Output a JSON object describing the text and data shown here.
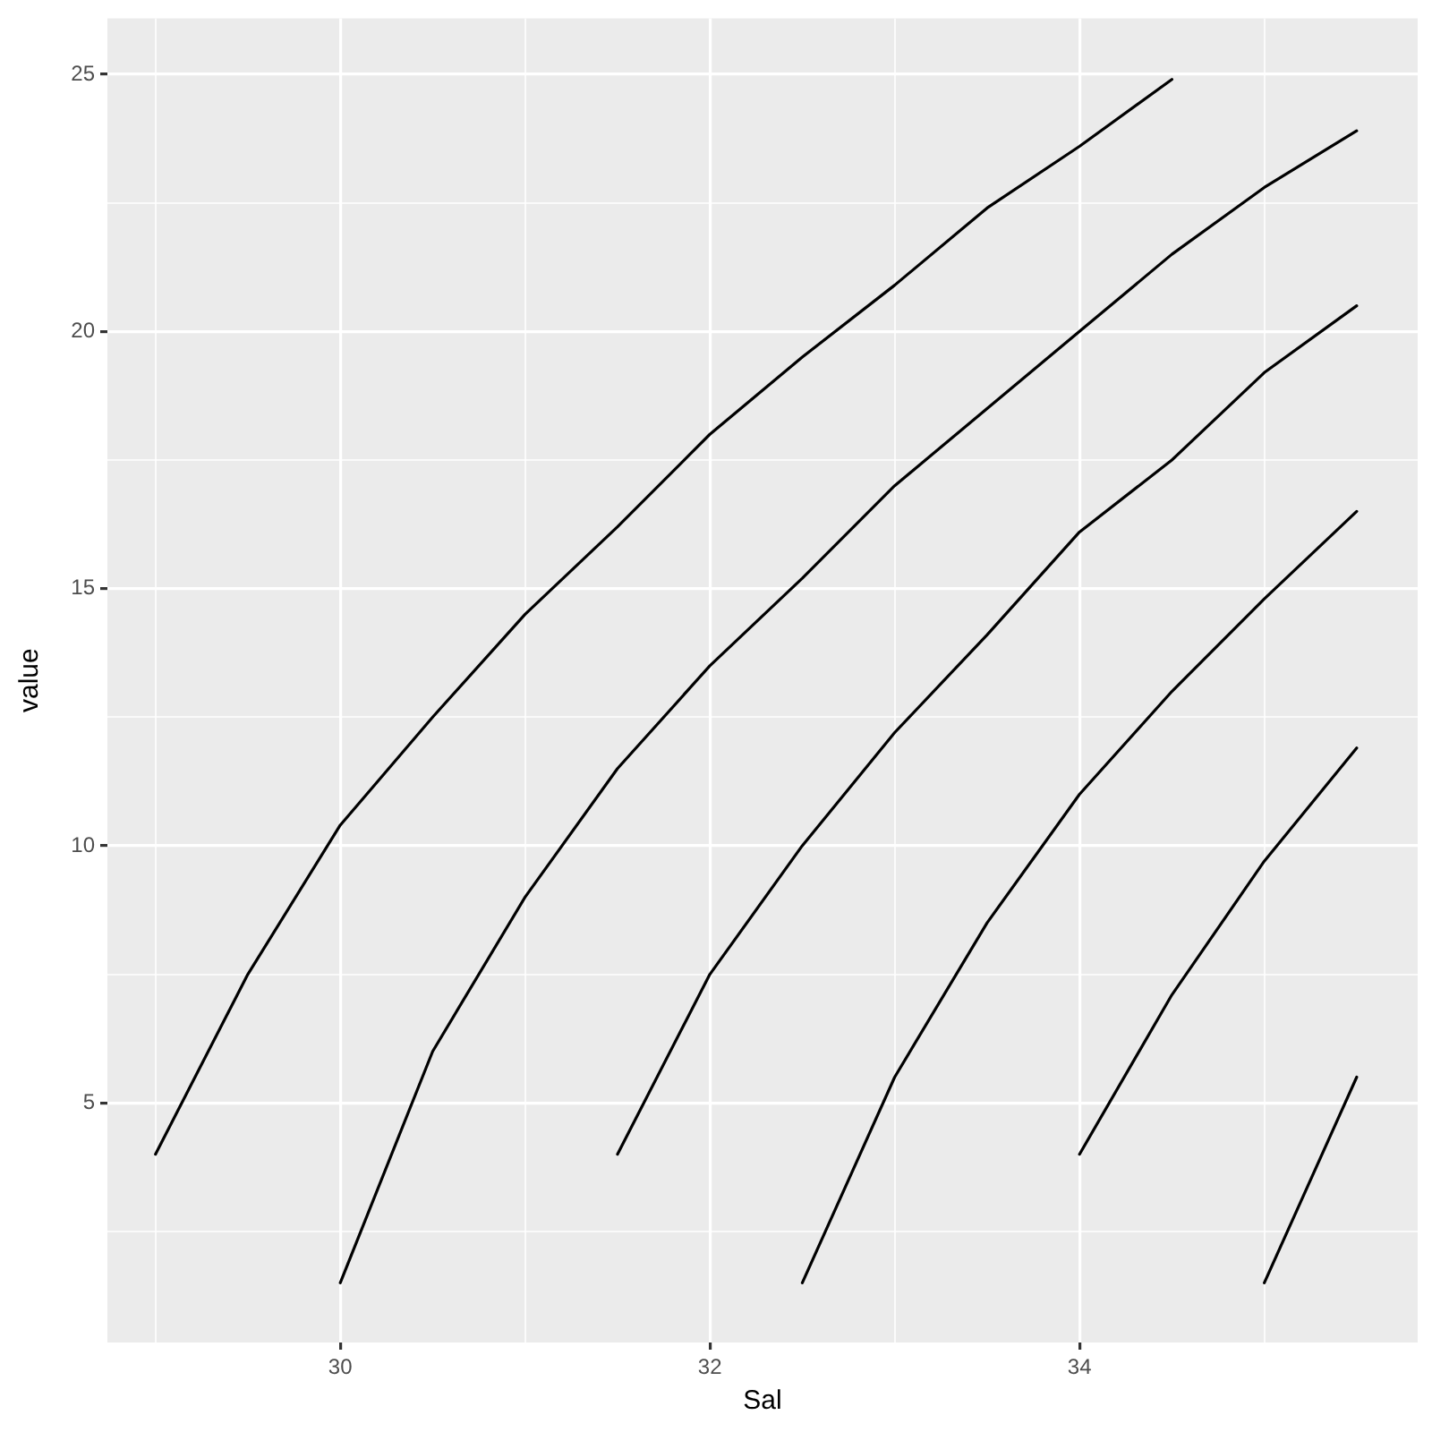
{
  "chart_data": {
    "type": "line",
    "xlabel": "Sal",
    "ylabel": "value",
    "grid": true,
    "legend": false,
    "marker": "none",
    "line_style": "solid",
    "xlim": [
      28.74,
      35.83
    ],
    "ylim": [
      0.34,
      26.09
    ],
    "xticks": [
      {
        "value": 29,
        "label": null
      },
      30,
      {
        "value": 31,
        "label": null
      },
      32,
      {
        "value": 33,
        "label": null
      },
      34,
      {
        "value": 35,
        "label": null
      }
    ],
    "yticks": [
      {
        "value": 2.5,
        "label": null
      },
      5,
      {
        "value": 7.5,
        "label": null
      },
      10,
      {
        "value": 12.5,
        "label": null
      },
      15,
      {
        "value": 17.5,
        "label": null
      },
      20,
      {
        "value": 22.5,
        "label": null
      },
      25
    ],
    "series": [
      {
        "color": "#000000",
        "x": [
          29,
          29.5,
          30,
          30.5,
          31,
          31.5,
          32,
          32.5,
          33,
          33.5,
          34,
          34.5
        ],
        "values": [
          4.0,
          7.5,
          10.4,
          12.5,
          14.5,
          16.2,
          18.0,
          19.5,
          20.9,
          22.4,
          23.6,
          24.9
        ]
      },
      {
        "color": "#000000",
        "x": [
          30,
          30.5,
          31,
          31.5,
          32,
          32.5,
          33,
          33.5,
          34,
          34.5,
          35,
          35.5
        ],
        "values": [
          1.5,
          6.0,
          9.0,
          11.5,
          13.5,
          15.2,
          17.0,
          18.5,
          20.0,
          21.5,
          22.8,
          23.9
        ]
      },
      {
        "color": "#000000",
        "x": [
          31.5,
          32,
          32.5,
          33,
          33.5,
          34,
          34.5,
          35,
          35.5
        ],
        "values": [
          4.0,
          7.5,
          10.0,
          12.2,
          14.1,
          16.1,
          17.5,
          19.2,
          20.5
        ]
      },
      {
        "color": "#000000",
        "x": [
          32.5,
          33,
          33.5,
          34,
          34.5,
          35,
          35.5
        ],
        "values": [
          1.5,
          5.5,
          8.5,
          11.0,
          13.0,
          14.8,
          16.5
        ]
      },
      {
        "color": "#000000",
        "x": [
          34,
          34.5,
          35,
          35.5
        ],
        "values": [
          4.0,
          7.1,
          9.7,
          11.9
        ]
      },
      {
        "color": "#000000",
        "x": [
          35,
          35.5
        ],
        "values": [
          1.5,
          5.5
        ]
      }
    ]
  }
}
